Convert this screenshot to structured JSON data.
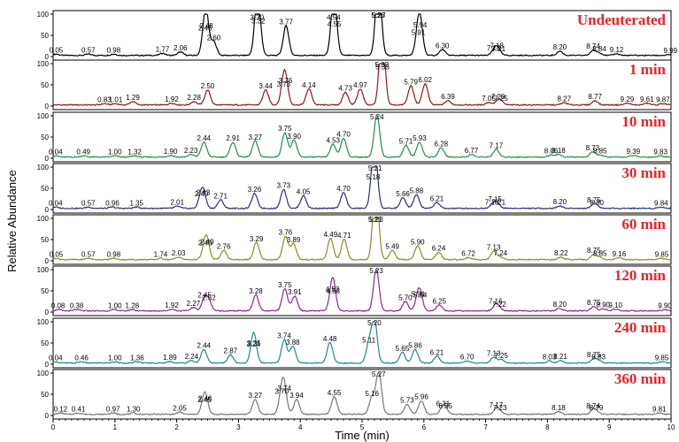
{
  "chart_data": {
    "type": "line",
    "xlabel": "Time (min)",
    "ylabel": "Relative Abundance",
    "xlim": [
      0,
      10
    ],
    "ylim": [
      0,
      100
    ],
    "x_ticks": [
      0,
      1,
      2,
      3,
      4,
      5,
      6,
      7,
      8,
      9,
      10
    ],
    "y_ticks": [
      0,
      50,
      100
    ],
    "grid": false,
    "panels": [
      {
        "title": "Undeuterated",
        "color": "#000000",
        "peaks": [
          [
            0.05,
            3
          ],
          [
            0.57,
            3
          ],
          [
            0.98,
            3
          ],
          [
            1.77,
            5
          ],
          [
            2.06,
            8
          ],
          [
            2.46,
            55
          ],
          [
            2.48,
            60
          ],
          [
            2.6,
            32
          ],
          [
            3.3,
            80
          ],
          [
            3.32,
            72
          ],
          [
            3.77,
            70
          ],
          [
            4.54,
            80
          ],
          [
            4.55,
            65
          ],
          [
            5.26,
            100
          ],
          [
            5.27,
            88
          ],
          [
            5.91,
            45
          ],
          [
            5.94,
            62
          ],
          [
            6.3,
            14
          ],
          [
            7.13,
            8
          ],
          [
            7.18,
            14
          ],
          [
            7.21,
            6
          ],
          [
            8.2,
            10
          ],
          [
            8.74,
            12
          ],
          [
            8.84,
            6
          ],
          [
            9.12,
            4
          ],
          [
            9.99,
            2
          ]
        ]
      },
      {
        "title": "1 min",
        "color": "#8b1a1a",
        "peaks": [
          [
            0.83,
            3
          ],
          [
            1.01,
            3
          ],
          [
            1.29,
            8
          ],
          [
            1.92,
            4
          ],
          [
            2.28,
            8
          ],
          [
            2.5,
            35
          ],
          [
            3.44,
            35
          ],
          [
            3.73,
            40
          ],
          [
            3.76,
            48
          ],
          [
            4.14,
            38
          ],
          [
            4.73,
            30
          ],
          [
            4.97,
            38
          ],
          [
            5.32,
            100
          ],
          [
            5.33,
            80
          ],
          [
            5.79,
            45
          ],
          [
            6.02,
            50
          ],
          [
            6.39,
            10
          ],
          [
            7.05,
            6
          ],
          [
            7.2,
            10
          ],
          [
            7.25,
            6
          ],
          [
            8.27,
            5
          ],
          [
            8.77,
            10
          ],
          [
            9.29,
            4
          ],
          [
            9.61,
            4
          ],
          [
            9.87,
            3
          ]
        ]
      },
      {
        "title": "10 min",
        "color": "#1f8f4a",
        "peaks": [
          [
            0.04,
            3
          ],
          [
            0.49,
            3
          ],
          [
            1.0,
            3
          ],
          [
            1.32,
            3
          ],
          [
            1.9,
            4
          ],
          [
            2.23,
            6
          ],
          [
            2.44,
            35
          ],
          [
            2.91,
            35
          ],
          [
            3.27,
            38
          ],
          [
            3.75,
            58
          ],
          [
            3.9,
            40
          ],
          [
            4.53,
            30
          ],
          [
            4.7,
            45
          ],
          [
            5.24,
            100
          ],
          [
            5.71,
            28
          ],
          [
            5.93,
            35
          ],
          [
            6.28,
            22
          ],
          [
            6.77,
            6
          ],
          [
            7.17,
            18
          ],
          [
            8.06,
            5
          ],
          [
            8.18,
            6
          ],
          [
            8.73,
            12
          ],
          [
            8.85,
            5
          ],
          [
            9.39,
            4
          ],
          [
            9.83,
            3
          ]
        ]
      },
      {
        "title": "30 min",
        "color": "#2b2f7f",
        "peaks": [
          [
            0.04,
            3
          ],
          [
            0.57,
            3
          ],
          [
            0.96,
            3
          ],
          [
            1.35,
            3
          ],
          [
            2.01,
            5
          ],
          [
            2.4,
            25
          ],
          [
            2.43,
            28
          ],
          [
            2.71,
            20
          ],
          [
            3.26,
            35
          ],
          [
            3.73,
            45
          ],
          [
            4.05,
            30
          ],
          [
            4.7,
            38
          ],
          [
            5.18,
            65
          ],
          [
            5.21,
            100
          ],
          [
            5.66,
            25
          ],
          [
            5.88,
            32
          ],
          [
            6.21,
            14
          ],
          [
            7.1,
            5
          ],
          [
            7.15,
            12
          ],
          [
            7.21,
            5
          ],
          [
            8.2,
            6
          ],
          [
            8.75,
            10
          ],
          [
            8.8,
            4
          ],
          [
            9.84,
            3
          ]
        ]
      },
      {
        "title": "60 min",
        "color": "#8f8a2a",
        "peaks": [
          [
            0.05,
            3
          ],
          [
            0.57,
            3
          ],
          [
            0.98,
            3
          ],
          [
            1.74,
            3
          ],
          [
            2.03,
            6
          ],
          [
            2.46,
            30
          ],
          [
            2.49,
            32
          ],
          [
            2.76,
            22
          ],
          [
            3.29,
            40
          ],
          [
            3.76,
            55
          ],
          [
            3.89,
            38
          ],
          [
            4.49,
            50
          ],
          [
            4.71,
            48
          ],
          [
            5.23,
            100
          ],
          [
            5.21,
            88
          ],
          [
            5.49,
            22
          ],
          [
            5.9,
            32
          ],
          [
            6.24,
            18
          ],
          [
            6.72,
            5
          ],
          [
            7.13,
            20
          ],
          [
            7.24,
            6
          ],
          [
            8.22,
            6
          ],
          [
            8.75,
            12
          ],
          [
            8.85,
            5
          ],
          [
            9.16,
            4
          ],
          [
            9.85,
            3
          ]
        ]
      },
      {
        "title": "120 min",
        "color": "#8b2a8f",
        "peaks": [
          [
            0.08,
            3
          ],
          [
            0.38,
            3
          ],
          [
            1.0,
            3
          ],
          [
            1.28,
            3
          ],
          [
            1.92,
            4
          ],
          [
            2.27,
            8
          ],
          [
            2.45,
            28
          ],
          [
            2.52,
            22
          ],
          [
            3.28,
            38
          ],
          [
            3.75,
            52
          ],
          [
            3.91,
            35
          ],
          [
            4.52,
            42
          ],
          [
            4.53,
            38
          ],
          [
            5.23,
            100
          ],
          [
            5.7,
            22
          ],
          [
            5.91,
            30
          ],
          [
            5.94,
            28
          ],
          [
            6.25,
            14
          ],
          [
            7.16,
            14
          ],
          [
            7.22,
            6
          ],
          [
            8.2,
            6
          ],
          [
            8.75,
            10
          ],
          [
            8.9,
            5
          ],
          [
            9.1,
            4
          ],
          [
            9.9,
            3
          ]
        ]
      },
      {
        "title": "240 min",
        "color": "#1f8a8a",
        "peaks": [
          [
            0.04,
            3
          ],
          [
            0.46,
            3
          ],
          [
            1.0,
            3
          ],
          [
            1.36,
            3
          ],
          [
            1.89,
            4
          ],
          [
            2.24,
            6
          ],
          [
            2.44,
            32
          ],
          [
            2.87,
            20
          ],
          [
            3.24,
            35
          ],
          [
            3.25,
            38
          ],
          [
            3.74,
            55
          ],
          [
            3.88,
            40
          ],
          [
            4.48,
            48
          ],
          [
            5.11,
            45
          ],
          [
            5.2,
            100
          ],
          [
            5.65,
            25
          ],
          [
            5.86,
            32
          ],
          [
            6.21,
            16
          ],
          [
            6.7,
            5
          ],
          [
            7.13,
            14
          ],
          [
            7.25,
            8
          ],
          [
            8.03,
            5
          ],
          [
            8.21,
            6
          ],
          [
            8.75,
            10
          ],
          [
            8.83,
            5
          ],
          [
            9.85,
            3
          ]
        ]
      },
      {
        "title": "360 min",
        "color": "#777777",
        "peaks": [
          [
            0.12,
            3
          ],
          [
            0.41,
            3
          ],
          [
            0.97,
            3
          ],
          [
            1.3,
            3
          ],
          [
            2.05,
            5
          ],
          [
            2.45,
            25
          ],
          [
            2.46,
            28
          ],
          [
            3.27,
            35
          ],
          [
            3.7,
            45
          ],
          [
            3.74,
            52
          ],
          [
            3.94,
            35
          ],
          [
            4.55,
            42
          ],
          [
            5.16,
            40
          ],
          [
            5.27,
            100
          ],
          [
            5.73,
            24
          ],
          [
            5.96,
            32
          ],
          [
            6.31,
            16
          ],
          [
            6.35,
            10
          ],
          [
            7.17,
            12
          ],
          [
            7.23,
            6
          ],
          [
            8.18,
            6
          ],
          [
            8.74,
            10
          ],
          [
            8.79,
            6
          ],
          [
            9.81,
            3
          ]
        ]
      }
    ]
  }
}
